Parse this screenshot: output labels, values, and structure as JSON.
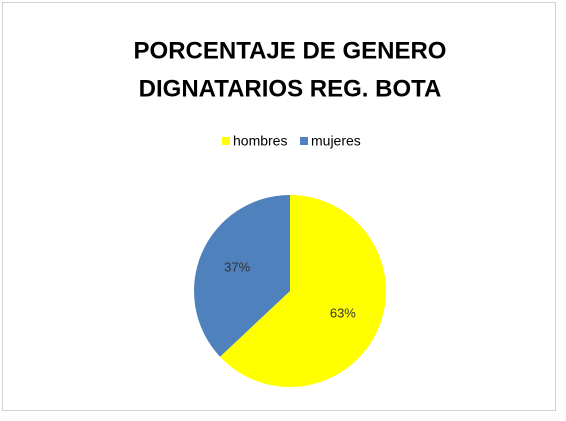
{
  "chart_data": {
    "type": "pie",
    "title": [
      "PORCENTAJE DE GENERO",
      "DIGNATARIOS REG. BOTA"
    ],
    "categories": [
      "hombres",
      "mujeres"
    ],
    "values": [
      63,
      37
    ],
    "value_labels": [
      "63%",
      "37%"
    ],
    "colors": [
      "#ffff00",
      "#4f81bd"
    ]
  }
}
